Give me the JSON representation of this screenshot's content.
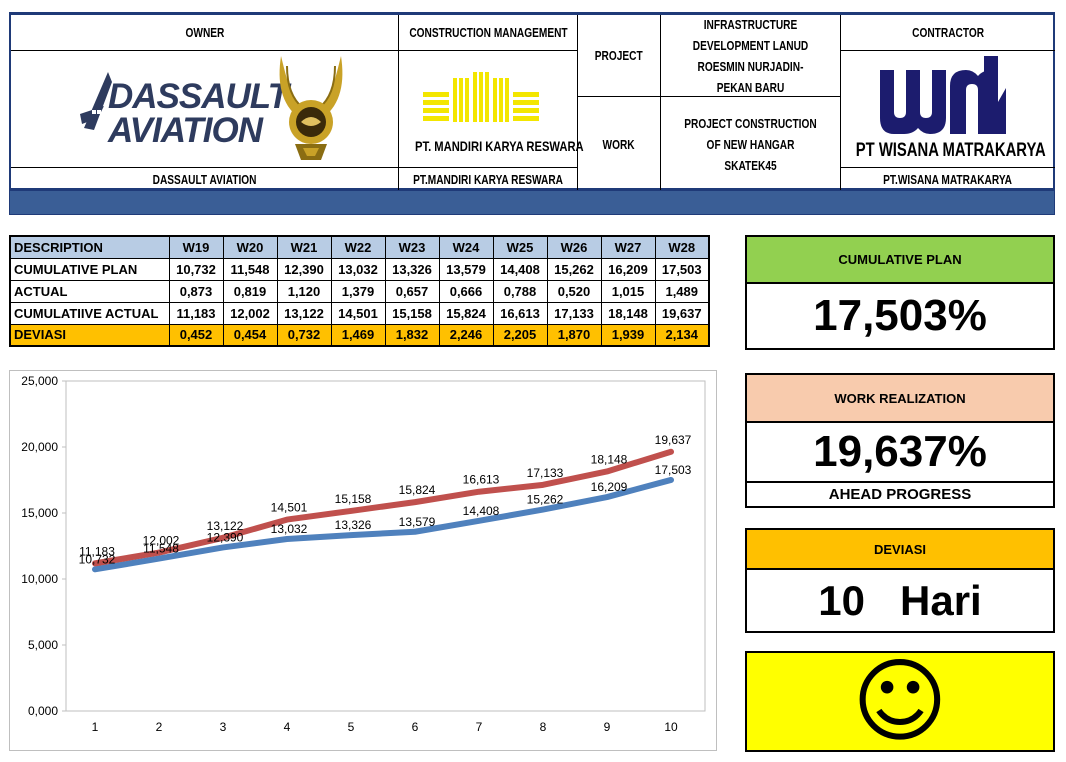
{
  "header": {
    "owner_label": "OWNER",
    "cm_label": "CONSTRUCTION MANAGEMENT",
    "project_label": "PROJECT",
    "project_value": "INFRASTRUCTURE DEVELOPMENT LANUD ROESMIN NURJADIN-PEKAN BARU",
    "contractor_label": "CONTRACTOR",
    "work_label": "WORK",
    "work_value": "PROJECT CONSTRUCTION OF NEW HANGAR SKATEK45",
    "owner_logo_text": "DASSAULT AVIATION",
    "cm_logo_text": "PT. MANDIRI KARYA RESWARA",
    "contractor_logo_text": "PT WISANA MATRAKARYA",
    "contractor_logo_mark": "wmk",
    "owner_name": "DASSAULT AVIATION",
    "cm_name": "PT.MANDIRI KARYA RESWARA",
    "contractor_name": "PT.WISANA MATRAKARYA"
  },
  "table": {
    "headers": [
      "DESCRIPTION",
      "W19",
      "W20",
      "W21",
      "W22",
      "W23",
      "W24",
      "W25",
      "W26",
      "W27",
      "W28"
    ],
    "rows": [
      {
        "label": "CUMULATIVE PLAN",
        "values": [
          "10,732",
          "11,548",
          "12,390",
          "13,032",
          "13,326",
          "13,579",
          "14,408",
          "15,262",
          "16,209",
          "17,503"
        ]
      },
      {
        "label": "ACTUAL",
        "values": [
          "0,873",
          "0,819",
          "1,120",
          "1,379",
          "0,657",
          "0,666",
          "0,788",
          "0,520",
          "1,015",
          "1,489"
        ]
      },
      {
        "label": "CUMULATIIVE ACTUAL",
        "values": [
          "11,183",
          "12,002",
          "13,122",
          "14,501",
          "15,158",
          "15,824",
          "16,613",
          "17,133",
          "18,148",
          "19,637"
        ]
      },
      {
        "label": "DEVIASI",
        "values": [
          "0,452",
          "0,454",
          "0,732",
          "1,469",
          "1,832",
          "2,246",
          "2,205",
          "1,870",
          "1,939",
          "2,134"
        ]
      }
    ]
  },
  "cards": {
    "plan_title": "CUMULATIVE PLAN",
    "plan_value": "17,503%",
    "work_title": "WORK REALIZATION",
    "work_value": "19,637%",
    "work_status": "AHEAD PROGRESS",
    "dev_title": "DEVIASI",
    "dev_value": "10   Hari",
    "smiley": "☺"
  },
  "colors": {
    "header_border": "#1f3a78",
    "blue_bar": "#3a5e96",
    "table_header": "#b8cce4",
    "deviasi_row": "#ffc000",
    "plan_title_bg": "#92d050",
    "work_title_bg": "#f8cbad",
    "dev_title_bg": "#ffc000",
    "smiley_bg": "#ffff00",
    "series_plan": "#4f81bd",
    "series_actual": "#c0504d",
    "dassault_blue": "#2e3b5e",
    "wmk_navy": "#1c1c6e",
    "mkr_yellow": "#f3e600",
    "emblem_gold": "#c9a227"
  },
  "chart_data": {
    "type": "line",
    "x": [
      1,
      2,
      3,
      4,
      5,
      6,
      7,
      8,
      9,
      10
    ],
    "x_tick_labels": [
      "1",
      "2",
      "3",
      "4",
      "5",
      "6",
      "7",
      "8",
      "9",
      "10"
    ],
    "y_tick_labels": [
      "0,000",
      "5,000",
      "10,000",
      "15,000",
      "20,000",
      "25,000"
    ],
    "ylim": [
      0,
      25
    ],
    "grid": false,
    "legend": "none",
    "series": [
      {
        "values": [
          10.732,
          11.548,
          12.39,
          13.032,
          13.326,
          13.579,
          14.408,
          15.262,
          16.209,
          17.503
        ],
        "labels": [
          "10,732",
          "11,548",
          "12,390",
          "13,032",
          "13,326",
          "13,579",
          "14,408",
          "15,262",
          "16,209",
          "17,503"
        ],
        "color": "#4f81bd"
      },
      {
        "values": [
          11.183,
          12.002,
          13.122,
          14.501,
          15.158,
          15.824,
          16.613,
          17.133,
          18.148,
          19.637
        ],
        "labels": [
          "11,183",
          "12,002",
          "13,122",
          "14,501",
          "15,158",
          "15,824",
          "16,613",
          "17,133",
          "18,148",
          "19,637"
        ],
        "color": "#c0504d"
      }
    ]
  }
}
